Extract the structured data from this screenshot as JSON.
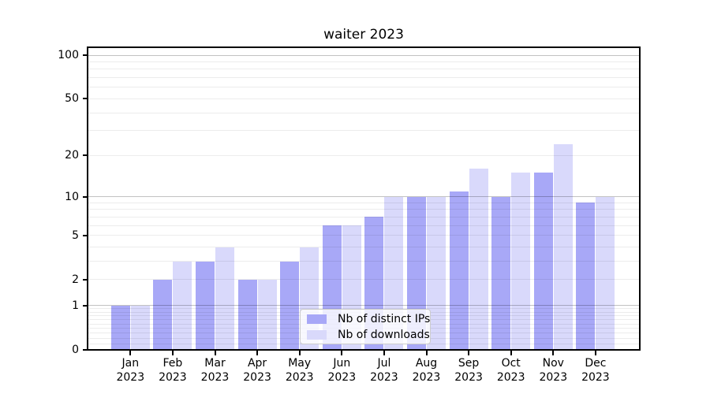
{
  "figure": {
    "title": "waiter 2023"
  },
  "chart_data": {
    "type": "bar",
    "title": "waiter 2023",
    "categories": [
      "Jan",
      "Feb",
      "Mar",
      "Apr",
      "May",
      "Jun",
      "Jul",
      "Aug",
      "Sep",
      "Oct",
      "Nov",
      "Dec"
    ],
    "year_label": "2023",
    "series": [
      {
        "name": "Nb of distinct IPs",
        "color": "#a8a8f7",
        "values": [
          1,
          2,
          3,
          2,
          3,
          6,
          7,
          10,
          11,
          10,
          15,
          9
        ]
      },
      {
        "name": "Nb of downloads",
        "color": "#d9d9fb",
        "values": [
          1,
          3,
          4,
          2,
          4,
          6,
          10,
          10,
          16,
          15,
          24,
          10
        ]
      }
    ],
    "y_axis": {
      "tick_labels": [
        "0",
        "1",
        "2",
        "5",
        "10",
        "20",
        "50",
        "100"
      ],
      "tick_values": [
        0,
        1,
        2,
        5,
        10,
        20,
        50,
        100
      ],
      "scale": "log10(value+1)",
      "range": [
        0,
        100
      ]
    },
    "grid": {
      "major_values": [
        1,
        10,
        100
      ],
      "minor_values": [
        0.1,
        0.2,
        0.3,
        0.4,
        0.5,
        0.6,
        0.7,
        0.8,
        0.9,
        2,
        3,
        4,
        5,
        6,
        7,
        8,
        9,
        20,
        30,
        40,
        50,
        60,
        70,
        80,
        90
      ],
      "major_color": "#c3c3c3",
      "minor_color": "#ebebeb"
    },
    "legend": {
      "position": "lower-center"
    },
    "axis_color": "#000000",
    "background_color": "#ffffff"
  }
}
